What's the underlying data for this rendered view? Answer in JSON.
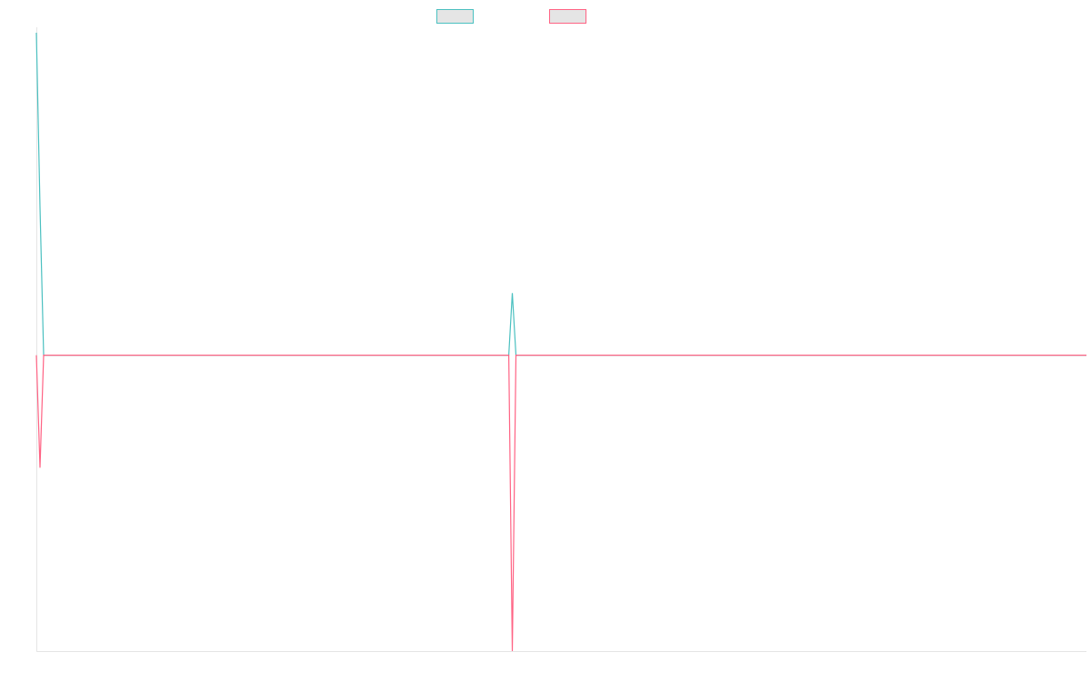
{
  "chart_data": {
    "type": "line",
    "title": "",
    "xlabel": "",
    "ylabel": "",
    "xlim": [
      0,
      289
    ],
    "ylim": [
      -1,
      1.09
    ],
    "grid": false,
    "legend": "top-center",
    "series": [
      {
        "color": "#4bc0c0",
        "points": [
          [
            0,
            1.09
          ],
          [
            1,
            0.5
          ],
          [
            2,
            0
          ],
          [
            130,
            0
          ],
          [
            131,
            0.21
          ],
          [
            132,
            0
          ],
          [
            289,
            0
          ]
        ]
      },
      {
        "color": "#ff6384",
        "points": [
          [
            0,
            0
          ],
          [
            1,
            -0.38
          ],
          [
            2,
            0
          ],
          [
            130,
            0
          ],
          [
            131,
            -1
          ],
          [
            132,
            0
          ],
          [
            289,
            0
          ]
        ]
      }
    ],
    "legend_fill": "#e5e5e5",
    "axis_color": "#e5e5e5"
  }
}
